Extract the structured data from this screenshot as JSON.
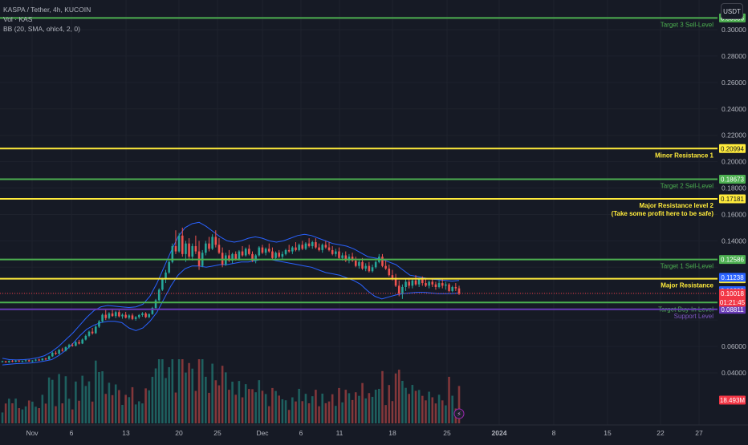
{
  "legend": {
    "symbol": "KASPA / Tether, 4h, KUCOIN",
    "volume": "Vol · KAS",
    "bollinger": "BB (20, SMA, ohlc4, 2, 0)"
  },
  "currency_button": "USDT",
  "colors": {
    "background": "#161a25",
    "grid": "#1e222d",
    "bull": "#26a69a",
    "bear": "#ef5350",
    "band": "#2962ff",
    "green_level": "#4caf50",
    "yellow_level": "#ffeb3b",
    "purple_level": "#673ab7",
    "current_price": "#f23645"
  },
  "chart_data": {
    "type": "candlestick",
    "y_axis": {
      "min": 0.03,
      "max": 0.31,
      "ticks": [
        "0.30000",
        "0.28000",
        "0.26000",
        "0.24000",
        "0.22000",
        "0.20000",
        "0.18000",
        "0.16000",
        "0.14000",
        "0.06000",
        "0.04000"
      ],
      "tick_values": [
        0.3,
        0.28,
        0.26,
        0.24,
        0.22,
        0.2,
        0.18,
        0.16,
        0.14,
        0.06,
        0.04
      ]
    },
    "x_axis": {
      "ticks": [
        "Nov",
        "6",
        "13",
        "20",
        "25",
        "Dec",
        "6",
        "11",
        "18",
        "25",
        "2024",
        "8",
        "15",
        "22",
        "27"
      ],
      "tick_bold": [
        false,
        false,
        false,
        false,
        false,
        false,
        false,
        false,
        false,
        false,
        true,
        false,
        false,
        false,
        false
      ]
    },
    "horizontal_levels": [
      {
        "price": 0.30886,
        "label": "Target 3 Sell-Level",
        "color": "#4caf50",
        "badge": "0.30886",
        "badge_color": "#4caf50"
      },
      {
        "price": 0.20994,
        "label": "Minor Resistance 1",
        "color": "#ffeb3b",
        "badge": "0.20994",
        "badge_color": "#ffeb3b"
      },
      {
        "price": 0.18673,
        "label": "Target 2 Sell-Level",
        "color": "#4caf50",
        "badge": "0.18673",
        "badge_color": "#4caf50"
      },
      {
        "price": 0.17181,
        "label": "Major Resistance level 2",
        "label2": "(Take some profit here to be safe)",
        "color": "#ffeb3b",
        "badge": "0.17181",
        "badge_color": "#ffeb3b"
      },
      {
        "price": 0.12586,
        "label": "Target 1 Sell-Level",
        "color": "#4caf50",
        "badge": "0.12586",
        "badge_color": "#4caf50"
      },
      {
        "price": 0.11128,
        "label": "Major Resistance",
        "color": "#ffeb3b",
        "badge": "0.11128",
        "badge_color": "#ffeb3b"
      },
      {
        "price": 0.09329,
        "label": "Target Buy-In Level",
        "color": "#4caf50",
        "badge": "0.09329",
        "badge_color": "#4caf50"
      },
      {
        "price": 0.08811,
        "label": "Support Level",
        "color": "#673ab7",
        "badge": "0.08811",
        "badge_color": "#673ab7"
      }
    ],
    "extra_badges": [
      {
        "price": 0.11238,
        "text": "0.11238",
        "bg": "#2962ff"
      },
      {
        "price": 0.10229,
        "text": "0.10229",
        "bg": "#2962ff"
      }
    ],
    "current_price": {
      "price": 0.10018,
      "text": "0.10018",
      "countdown": "01:21:45"
    },
    "volume_badge": "18.493M",
    "candles": [
      [
        0.0485,
        0.0492,
        0.0478,
        0.0488
      ],
      [
        0.0488,
        0.049,
        0.0476,
        0.048
      ],
      [
        0.048,
        0.0494,
        0.0476,
        0.049
      ],
      [
        0.049,
        0.0497,
        0.048,
        0.0484
      ],
      [
        0.0484,
        0.0496,
        0.048,
        0.0492
      ],
      [
        0.0492,
        0.0498,
        0.0482,
        0.0486
      ],
      [
        0.0486,
        0.0494,
        0.0479,
        0.049
      ],
      [
        0.049,
        0.05,
        0.0483,
        0.0495
      ],
      [
        0.0495,
        0.05,
        0.0484,
        0.0487
      ],
      [
        0.0487,
        0.0496,
        0.0481,
        0.0493
      ],
      [
        0.0493,
        0.0505,
        0.0488,
        0.05
      ],
      [
        0.05,
        0.0508,
        0.049,
        0.0495
      ],
      [
        0.0495,
        0.0512,
        0.0492,
        0.0508
      ],
      [
        0.0508,
        0.0515,
        0.0496,
        0.0502
      ],
      [
        0.0502,
        0.053,
        0.05,
        0.0525
      ],
      [
        0.0525,
        0.056,
        0.052,
        0.0552
      ],
      [
        0.0552,
        0.0565,
        0.0535,
        0.0545
      ],
      [
        0.0545,
        0.058,
        0.054,
        0.0575
      ],
      [
        0.0575,
        0.059,
        0.056,
        0.0568
      ],
      [
        0.0568,
        0.06,
        0.0562,
        0.0595
      ],
      [
        0.0595,
        0.062,
        0.0585,
        0.061
      ],
      [
        0.061,
        0.0625,
        0.0598,
        0.0605
      ],
      [
        0.0605,
        0.064,
        0.06,
        0.0632
      ],
      [
        0.0632,
        0.065,
        0.0615,
        0.0622
      ],
      [
        0.0622,
        0.066,
        0.0618,
        0.0652
      ],
      [
        0.0652,
        0.069,
        0.0645,
        0.068
      ],
      [
        0.068,
        0.072,
        0.067,
        0.0712
      ],
      [
        0.0712,
        0.074,
        0.069,
        0.07
      ],
      [
        0.07,
        0.076,
        0.0695,
        0.075
      ],
      [
        0.075,
        0.08,
        0.074,
        0.079
      ],
      [
        0.079,
        0.085,
        0.078,
        0.084
      ],
      [
        0.084,
        0.088,
        0.08,
        0.0815
      ],
      [
        0.0815,
        0.086,
        0.0805,
        0.085
      ],
      [
        0.085,
        0.088,
        0.0825,
        0.083
      ],
      [
        0.083,
        0.087,
        0.0815,
        0.086
      ],
      [
        0.086,
        0.0875,
        0.082,
        0.0828
      ],
      [
        0.0828,
        0.085,
        0.081,
        0.084
      ],
      [
        0.084,
        0.0862,
        0.0812,
        0.0818
      ],
      [
        0.0818,
        0.0845,
        0.0805,
        0.0835
      ],
      [
        0.0835,
        0.085,
        0.08,
        0.0808
      ],
      [
        0.0808,
        0.083,
        0.0795,
        0.0822
      ],
      [
        0.0822,
        0.0845,
        0.081,
        0.0838
      ],
      [
        0.0838,
        0.086,
        0.0825,
        0.085
      ],
      [
        0.085,
        0.086,
        0.0815,
        0.0822
      ],
      [
        0.0822,
        0.085,
        0.0815,
        0.0845
      ],
      [
        0.0845,
        0.09,
        0.084,
        0.0892
      ],
      [
        0.0892,
        0.096,
        0.0885,
        0.095
      ],
      [
        0.095,
        0.104,
        0.094,
        0.103
      ],
      [
        0.103,
        0.112,
        0.102,
        0.111
      ],
      [
        0.111,
        0.118,
        0.108,
        0.116
      ],
      [
        0.116,
        0.125,
        0.115,
        0.124
      ],
      [
        0.124,
        0.138,
        0.123,
        0.136
      ],
      [
        0.136,
        0.148,
        0.13,
        0.132
      ],
      [
        0.132,
        0.146,
        0.131,
        0.144
      ],
      [
        0.144,
        0.15,
        0.128,
        0.13
      ],
      [
        0.13,
        0.14,
        0.124,
        0.138
      ],
      [
        0.138,
        0.142,
        0.126,
        0.128
      ],
      [
        0.128,
        0.138,
        0.125,
        0.136
      ],
      [
        0.136,
        0.144,
        0.13,
        0.132
      ],
      [
        0.132,
        0.14,
        0.118,
        0.121
      ],
      [
        0.121,
        0.133,
        0.12,
        0.131
      ],
      [
        0.131,
        0.14,
        0.129,
        0.138
      ],
      [
        0.138,
        0.143,
        0.132,
        0.134
      ],
      [
        0.134,
        0.145,
        0.133,
        0.143
      ],
      [
        0.143,
        0.148,
        0.135,
        0.137
      ],
      [
        0.137,
        0.142,
        0.13,
        0.131
      ],
      [
        0.131,
        0.135,
        0.12,
        0.122
      ],
      [
        0.122,
        0.131,
        0.121,
        0.129
      ],
      [
        0.129,
        0.133,
        0.124,
        0.125
      ],
      [
        0.125,
        0.131,
        0.123,
        0.13
      ],
      [
        0.13,
        0.132,
        0.125,
        0.126
      ],
      [
        0.126,
        0.133,
        0.125,
        0.132
      ],
      [
        0.132,
        0.136,
        0.128,
        0.129
      ],
      [
        0.129,
        0.135,
        0.128,
        0.134
      ],
      [
        0.134,
        0.137,
        0.129,
        0.13
      ],
      [
        0.13,
        0.132,
        0.124,
        0.125
      ],
      [
        0.125,
        0.13,
        0.123,
        0.129
      ],
      [
        0.129,
        0.136,
        0.128,
        0.135
      ],
      [
        0.135,
        0.137,
        0.13,
        0.131
      ],
      [
        0.131,
        0.135,
        0.129,
        0.134
      ],
      [
        0.134,
        0.138,
        0.131,
        0.132
      ],
      [
        0.132,
        0.135,
        0.126,
        0.127
      ],
      [
        0.127,
        0.132,
        0.126,
        0.131
      ],
      [
        0.131,
        0.133,
        0.127,
        0.128
      ],
      [
        0.128,
        0.132,
        0.126,
        0.13
      ],
      [
        0.13,
        0.134,
        0.129,
        0.133
      ],
      [
        0.133,
        0.137,
        0.131,
        0.132
      ],
      [
        0.132,
        0.136,
        0.13,
        0.135
      ],
      [
        0.135,
        0.139,
        0.132,
        0.133
      ],
      [
        0.133,
        0.138,
        0.132,
        0.137
      ],
      [
        0.137,
        0.14,
        0.133,
        0.134
      ],
      [
        0.134,
        0.139,
        0.133,
        0.138
      ],
      [
        0.138,
        0.142,
        0.135,
        0.136
      ],
      [
        0.136,
        0.14,
        0.134,
        0.139
      ],
      [
        0.139,
        0.142,
        0.134,
        0.135
      ],
      [
        0.135,
        0.138,
        0.132,
        0.133
      ],
      [
        0.133,
        0.138,
        0.131,
        0.137
      ],
      [
        0.137,
        0.14,
        0.134,
        0.135
      ],
      [
        0.135,
        0.139,
        0.132,
        0.133
      ],
      [
        0.133,
        0.136,
        0.129,
        0.13
      ],
      [
        0.13,
        0.134,
        0.128,
        0.132
      ],
      [
        0.132,
        0.135,
        0.126,
        0.127
      ],
      [
        0.127,
        0.131,
        0.125,
        0.129
      ],
      [
        0.129,
        0.132,
        0.124,
        0.125
      ],
      [
        0.125,
        0.13,
        0.123,
        0.128
      ],
      [
        0.128,
        0.131,
        0.124,
        0.125
      ],
      [
        0.125,
        0.128,
        0.12,
        0.121
      ],
      [
        0.121,
        0.126,
        0.119,
        0.124
      ],
      [
        0.124,
        0.127,
        0.118,
        0.119
      ],
      [
        0.119,
        0.123,
        0.117,
        0.121
      ],
      [
        0.121,
        0.124,
        0.116,
        0.117
      ],
      [
        0.117,
        0.122,
        0.116,
        0.12
      ],
      [
        0.12,
        0.125,
        0.119,
        0.124
      ],
      [
        0.124,
        0.13,
        0.123,
        0.128
      ],
      [
        0.128,
        0.13,
        0.12,
        0.121
      ],
      [
        0.121,
        0.125,
        0.118,
        0.119
      ],
      [
        0.119,
        0.122,
        0.113,
        0.114
      ],
      [
        0.114,
        0.118,
        0.11,
        0.112
      ],
      [
        0.112,
        0.115,
        0.105,
        0.106
      ],
      [
        0.106,
        0.11,
        0.098,
        0.1
      ],
      [
        0.1,
        0.107,
        0.096,
        0.105
      ],
      [
        0.105,
        0.111,
        0.102,
        0.109
      ],
      [
        0.109,
        0.112,
        0.104,
        0.106
      ],
      [
        0.106,
        0.111,
        0.104,
        0.11
      ],
      [
        0.11,
        0.114,
        0.106,
        0.107
      ],
      [
        0.107,
        0.112,
        0.105,
        0.111
      ],
      [
        0.111,
        0.113,
        0.106,
        0.108
      ],
      [
        0.108,
        0.112,
        0.105,
        0.106
      ],
      [
        0.106,
        0.11,
        0.104,
        0.109
      ],
      [
        0.109,
        0.111,
        0.105,
        0.107
      ],
      [
        0.107,
        0.109,
        0.103,
        0.105
      ],
      [
        0.105,
        0.11,
        0.104,
        0.108
      ],
      [
        0.108,
        0.111,
        0.104,
        0.106
      ],
      [
        0.106,
        0.109,
        0.103,
        0.107
      ],
      [
        0.107,
        0.108,
        0.101,
        0.102
      ],
      [
        0.102,
        0.106,
        0.101,
        0.105
      ],
      [
        0.105,
        0.108,
        0.102,
        0.104
      ],
      [
        0.104,
        0.106,
        0.099,
        0.1
      ]
    ],
    "bb_upper": [
      0.051,
      0.05,
      0.0498,
      0.05,
      0.0505,
      0.0515,
      0.053,
      0.056,
      0.06,
      0.065,
      0.07,
      0.076,
      0.082,
      0.087,
      0.09,
      0.091,
      0.0905,
      0.09,
      0.0895,
      0.09,
      0.092,
      0.098,
      0.108,
      0.12,
      0.132,
      0.143,
      0.15,
      0.153,
      0.154,
      0.151,
      0.147,
      0.143,
      0.14,
      0.139,
      0.14,
      0.142,
      0.143,
      0.142,
      0.14,
      0.139,
      0.14,
      0.142,
      0.144,
      0.145,
      0.144,
      0.142,
      0.14,
      0.138,
      0.137,
      0.136,
      0.134,
      0.131,
      0.128,
      0.127,
      0.126,
      0.124,
      0.122,
      0.118,
      0.114,
      0.113,
      0.112,
      0.111,
      0.1105,
      0.11,
      0.1095,
      0.11
    ],
    "bb_lower": [
      0.046,
      0.0465,
      0.047,
      0.0472,
      0.0475,
      0.048,
      0.049,
      0.05,
      0.053,
      0.057,
      0.062,
      0.068,
      0.073,
      0.076,
      0.078,
      0.079,
      0.079,
      0.078,
      0.074,
      0.072,
      0.074,
      0.079,
      0.086,
      0.096,
      0.106,
      0.114,
      0.119,
      0.121,
      0.121,
      0.12,
      0.121,
      0.122,
      0.122,
      0.123,
      0.124,
      0.124,
      0.125,
      0.126,
      0.126,
      0.125,
      0.124,
      0.123,
      0.122,
      0.121,
      0.12,
      0.118,
      0.116,
      0.115,
      0.114,
      0.112,
      0.11,
      0.107,
      0.102,
      0.098,
      0.096,
      0.0975,
      0.099,
      0.1,
      0.1005,
      0.101,
      0.101,
      0.1005,
      0.1,
      0.1,
      0.1,
      0.1005
    ]
  }
}
